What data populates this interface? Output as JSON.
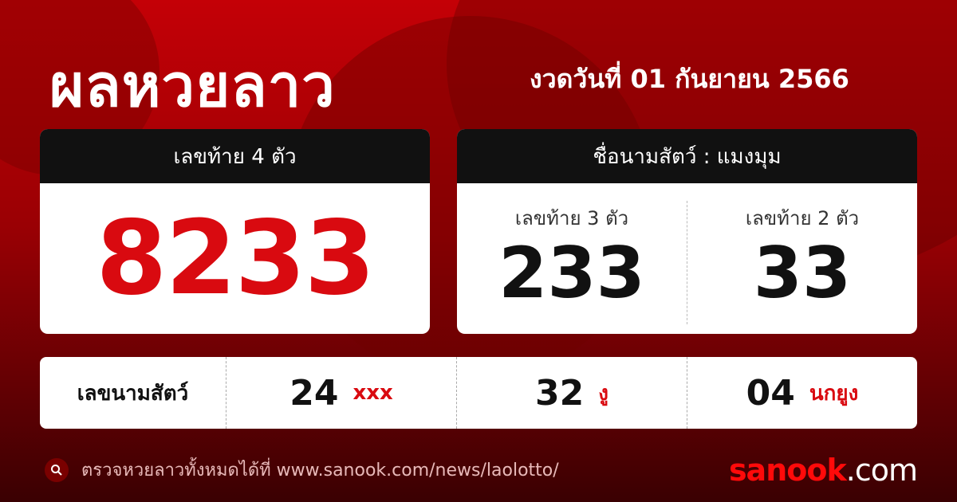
{
  "header": {
    "title": "ผลหวยลาว",
    "date": "งวดวันที่ 01 กันยายน 2566"
  },
  "four_digit": {
    "label": "เลขท้าย 4 ตัว",
    "value": "8233"
  },
  "animal_card": {
    "label": "ชื่อนามสัตว์ : แมงมุม",
    "three": {
      "label": "เลขท้าย 3 ตัว",
      "value": "233"
    },
    "two": {
      "label": "เลขท้าย 2 ตัว",
      "value": "33"
    }
  },
  "animal_numbers": {
    "label": "เลขนามสัตว์",
    "items": [
      {
        "number": "24",
        "animal": "xxx"
      },
      {
        "number": "32",
        "animal": "งู"
      },
      {
        "number": "04",
        "animal": "นกยูง"
      }
    ]
  },
  "footer": {
    "text": "ตรวจหวยลาวทั้งหมดได้ที่ www.sanook.com/news/laolotto/",
    "icon": "search-icon"
  },
  "logo": {
    "brand": "sanook",
    "suffix": ".com"
  },
  "colors": {
    "accent": "#d90a10",
    "background": "#b00005",
    "header_bar": "#111111"
  }
}
